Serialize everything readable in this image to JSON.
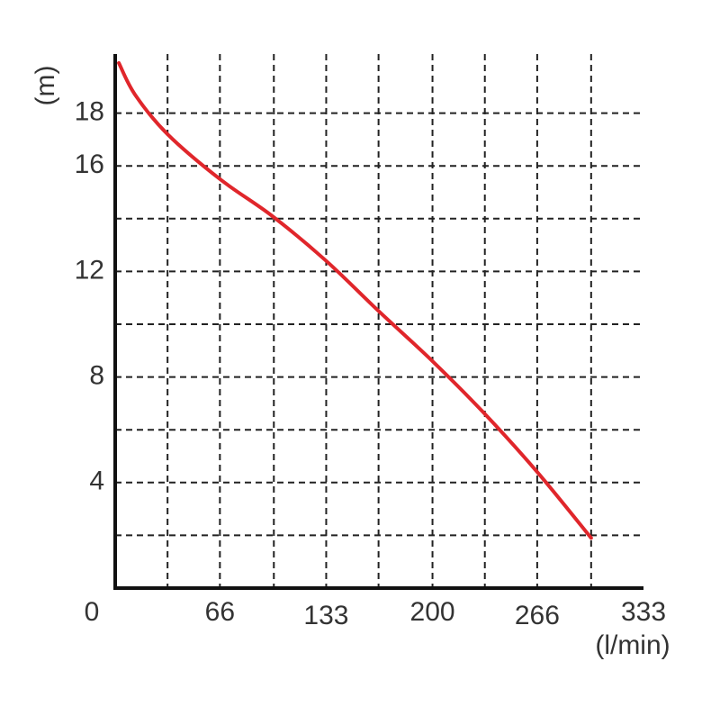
{
  "chart_data": {
    "type": "line",
    "y_label": "(m)",
    "x_label": "(l/min)",
    "xlim": [
      0,
      333
    ],
    "ylim": [
      0,
      20
    ],
    "xticks": [
      0,
      66,
      133,
      200,
      266,
      333
    ],
    "yticks": [
      4,
      8,
      12,
      16,
      18
    ],
    "x_minor_grid": [
      33,
      100,
      166,
      233,
      300
    ],
    "y_minor_grid": [
      2,
      6,
      10,
      14
    ],
    "grid": true,
    "series": [
      {
        "color": "#e0262b",
        "x": [
          2.3,
          12.5,
          33,
          66,
          99,
          133,
          166,
          200,
          233,
          266,
          300
        ],
        "values": [
          19.9,
          18.7,
          17.2,
          15.5,
          14.1,
          12.4,
          10.5,
          8.6,
          6.6,
          4.4,
          1.9
        ]
      }
    ]
  }
}
